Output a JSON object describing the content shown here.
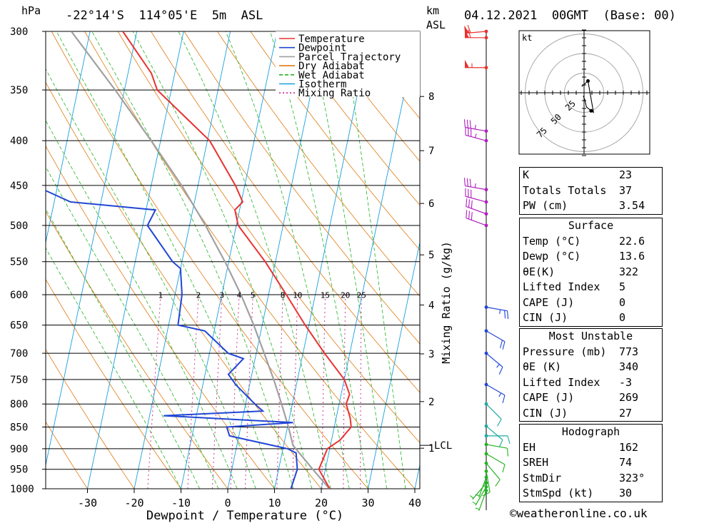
{
  "header": {
    "hpa_unit": "hPa",
    "location": "-22°14'S  114°05'E  5m  ASL",
    "km_unit": "km",
    "asl": "ASL",
    "datetime": "04.12.2021  00GMT  (Base: 00)"
  },
  "legend": [
    "Temperature",
    "Dewpoint",
    "Parcel Trajectory",
    "Dry Adiabat",
    "Wet Adiabat",
    "Isotherm",
    "Mixing Ratio"
  ],
  "colors": {
    "temperature": "#e8322f",
    "dewpoint": "#2146d6",
    "parcel": "#a0a0a0",
    "dry_adiabat": "#e07a10",
    "wet_adiabat": "#22b322",
    "isotherm": "#18a0e0",
    "mixing_ratio": "#d0208a"
  },
  "chart_data": {
    "type": "line",
    "subtype": "skew-T log-P",
    "xlabel": "Dewpoint / Temperature (°C)",
    "ylabel_right": "Mixing Ratio (g/kg)",
    "pressure_ticks": [
      300,
      350,
      400,
      450,
      500,
      550,
      600,
      650,
      700,
      750,
      800,
      850,
      900,
      950,
      1000
    ],
    "x_ticks": [
      -30,
      -20,
      -10,
      0,
      10,
      20,
      30,
      40
    ],
    "km_ticks": [
      1,
      2,
      3,
      4,
      5,
      6,
      7,
      8
    ],
    "lcl_label": "LCL",
    "lcl_pressure": 892,
    "mixing_ratio_labels": [
      "1",
      "2",
      "3",
      "4",
      "5",
      "8",
      "10",
      "15",
      "20",
      "25"
    ],
    "temperature": [
      [
        1010,
        22.6
      ],
      [
        1000,
        21.8
      ],
      [
        950,
        18.6
      ],
      [
        900,
        19.5
      ],
      [
        880,
        21.8
      ],
      [
        850,
        23.6
      ],
      [
        830,
        23.0
      ],
      [
        800,
        21.5
      ],
      [
        780,
        21.8
      ],
      [
        750,
        20.0
      ],
      [
        700,
        14.6
      ],
      [
        650,
        9.2
      ],
      [
        600,
        3.8
      ],
      [
        550,
        -2.2
      ],
      [
        500,
        -9.6
      ],
      [
        480,
        -11.0
      ],
      [
        470,
        -9.7
      ],
      [
        450,
        -12.0
      ],
      [
        400,
        -19.5
      ],
      [
        350,
        -33.0
      ],
      [
        335,
        -35.0
      ],
      [
        300,
        -43.0
      ]
    ],
    "dewpoint": [
      [
        1010,
        13.6
      ],
      [
        1000,
        13.5
      ],
      [
        950,
        14.0
      ],
      [
        910,
        13.0
      ],
      [
        900,
        11.0
      ],
      [
        870,
        -2.0
      ],
      [
        850,
        -3.0
      ],
      [
        840,
        11.0
      ],
      [
        825,
        -17.0
      ],
      [
        815,
        4.0
      ],
      [
        800,
        2.0
      ],
      [
        780,
        -0.5
      ],
      [
        760,
        -3.0
      ],
      [
        740,
        -5.0
      ],
      [
        710,
        -2.5
      ],
      [
        700,
        -6.0
      ],
      [
        660,
        -12.0
      ],
      [
        650,
        -18.0
      ],
      [
        600,
        -18.5
      ],
      [
        560,
        -20.0
      ],
      [
        550,
        -22.0
      ],
      [
        500,
        -29.0
      ],
      [
        480,
        -28.0
      ],
      [
        470,
        -46.5
      ],
      [
        450,
        -55.0
      ],
      [
        420,
        -60.0
      ],
      [
        400,
        -66.0
      ],
      [
        380,
        -74.0
      ],
      [
        345,
        -88.0
      ],
      [
        330,
        -72.0
      ],
      [
        300,
        -78.0
      ]
    ],
    "parcel": [
      [
        1010,
        22.6
      ],
      [
        950,
        17.3
      ],
      [
        892,
        12.0
      ],
      [
        850,
        10.2
      ],
      [
        800,
        7.7
      ],
      [
        750,
        4.9
      ],
      [
        700,
        1.7
      ],
      [
        650,
        -1.8
      ],
      [
        600,
        -5.9
      ],
      [
        550,
        -10.8
      ],
      [
        500,
        -16.6
      ],
      [
        450,
        -23.5
      ],
      [
        400,
        -32.0
      ],
      [
        350,
        -42.0
      ],
      [
        300,
        -54.0
      ]
    ],
    "wind_barbs": [
      {
        "p": 1005,
        "dir": 200,
        "kt": 5
      },
      {
        "p": 995,
        "dir": 210,
        "kt": 5
      },
      {
        "p": 985,
        "dir": 220,
        "kt": 5
      },
      {
        "p": 970,
        "dir": 200,
        "kt": 5
      },
      {
        "p": 955,
        "dir": 170,
        "kt": 10
      },
      {
        "p": 935,
        "dir": 140,
        "kt": 10
      },
      {
        "p": 912,
        "dir": 120,
        "kt": 10
      },
      {
        "p": 890,
        "dir": 100,
        "kt": 10
      },
      {
        "p": 870,
        "dir": 90,
        "kt": 10
      },
      {
        "p": 848,
        "dir": 130,
        "kt": 10
      },
      {
        "p": 800,
        "dir": 135,
        "kt": 10
      },
      {
        "p": 760,
        "dir": 120,
        "kt": 15
      },
      {
        "p": 700,
        "dir": 130,
        "kt": 15
      },
      {
        "p": 660,
        "dir": 120,
        "kt": 20
      },
      {
        "p": 620,
        "dir": 100,
        "kt": 25
      },
      {
        "p": 500,
        "dir": 290,
        "kt": 30
      },
      {
        "p": 485,
        "dir": 290,
        "kt": 30
      },
      {
        "p": 470,
        "dir": 285,
        "kt": 30
      },
      {
        "p": 455,
        "dir": 280,
        "kt": 35
      },
      {
        "p": 400,
        "dir": 285,
        "kt": 35
      },
      {
        "p": 390,
        "dir": 280,
        "kt": 35
      },
      {
        "p": 330,
        "dir": 270,
        "kt": 55
      },
      {
        "p": 305,
        "dir": 270,
        "kt": 60
      },
      {
        "p": 300,
        "dir": 265,
        "kt": 60
      }
    ]
  },
  "hodograph": {
    "unit": "kt",
    "ring_labels": [
      "25",
      "50",
      "75"
    ],
    "points": [
      [
        -1,
        -4
      ],
      [
        1,
        -9
      ],
      [
        3,
        -18
      ],
      [
        9,
        -23
      ],
      [
        12,
        -25
      ],
      [
        5,
        15
      ],
      [
        -3,
        8
      ]
    ]
  },
  "indices": {
    "k_label": "K",
    "k": "23",
    "tt_label": "Totals Totals",
    "tt": "37",
    "pw_label": "PW (cm)",
    "pw": "3.54"
  },
  "surface": {
    "title": "Surface",
    "temp_label": "Temp (°C)",
    "temp": "22.6",
    "dewp_label": "Dewp (°C)",
    "dewp": "13.6",
    "theta_e_label": "θE(K)",
    "theta_e": "322",
    "li_label": "Lifted Index",
    "li": "5",
    "cape_label": "CAPE (J)",
    "cape": "0",
    "cin_label": "CIN (J)",
    "cin": "0"
  },
  "most_unstable": {
    "title": "Most Unstable",
    "pressure_label": "Pressure (mb)",
    "pressure": "773",
    "theta_e_label": "θE (K)",
    "theta_e": "340",
    "li_label": "Lifted Index",
    "li": "-3",
    "cape_label": "CAPE (J)",
    "cape": "269",
    "cin_label": "CIN (J)",
    "cin": "27"
  },
  "hodograph_stats": {
    "title": "Hodograph",
    "eh_label": "EH",
    "eh": "162",
    "sreh_label": "SREH",
    "sreh": "74",
    "stmdir_label": "StmDir",
    "stmdir": "323°",
    "stmspd_label": "StmSpd (kt)",
    "stmspd": "30"
  },
  "credit": "©weatheronline.co.uk"
}
